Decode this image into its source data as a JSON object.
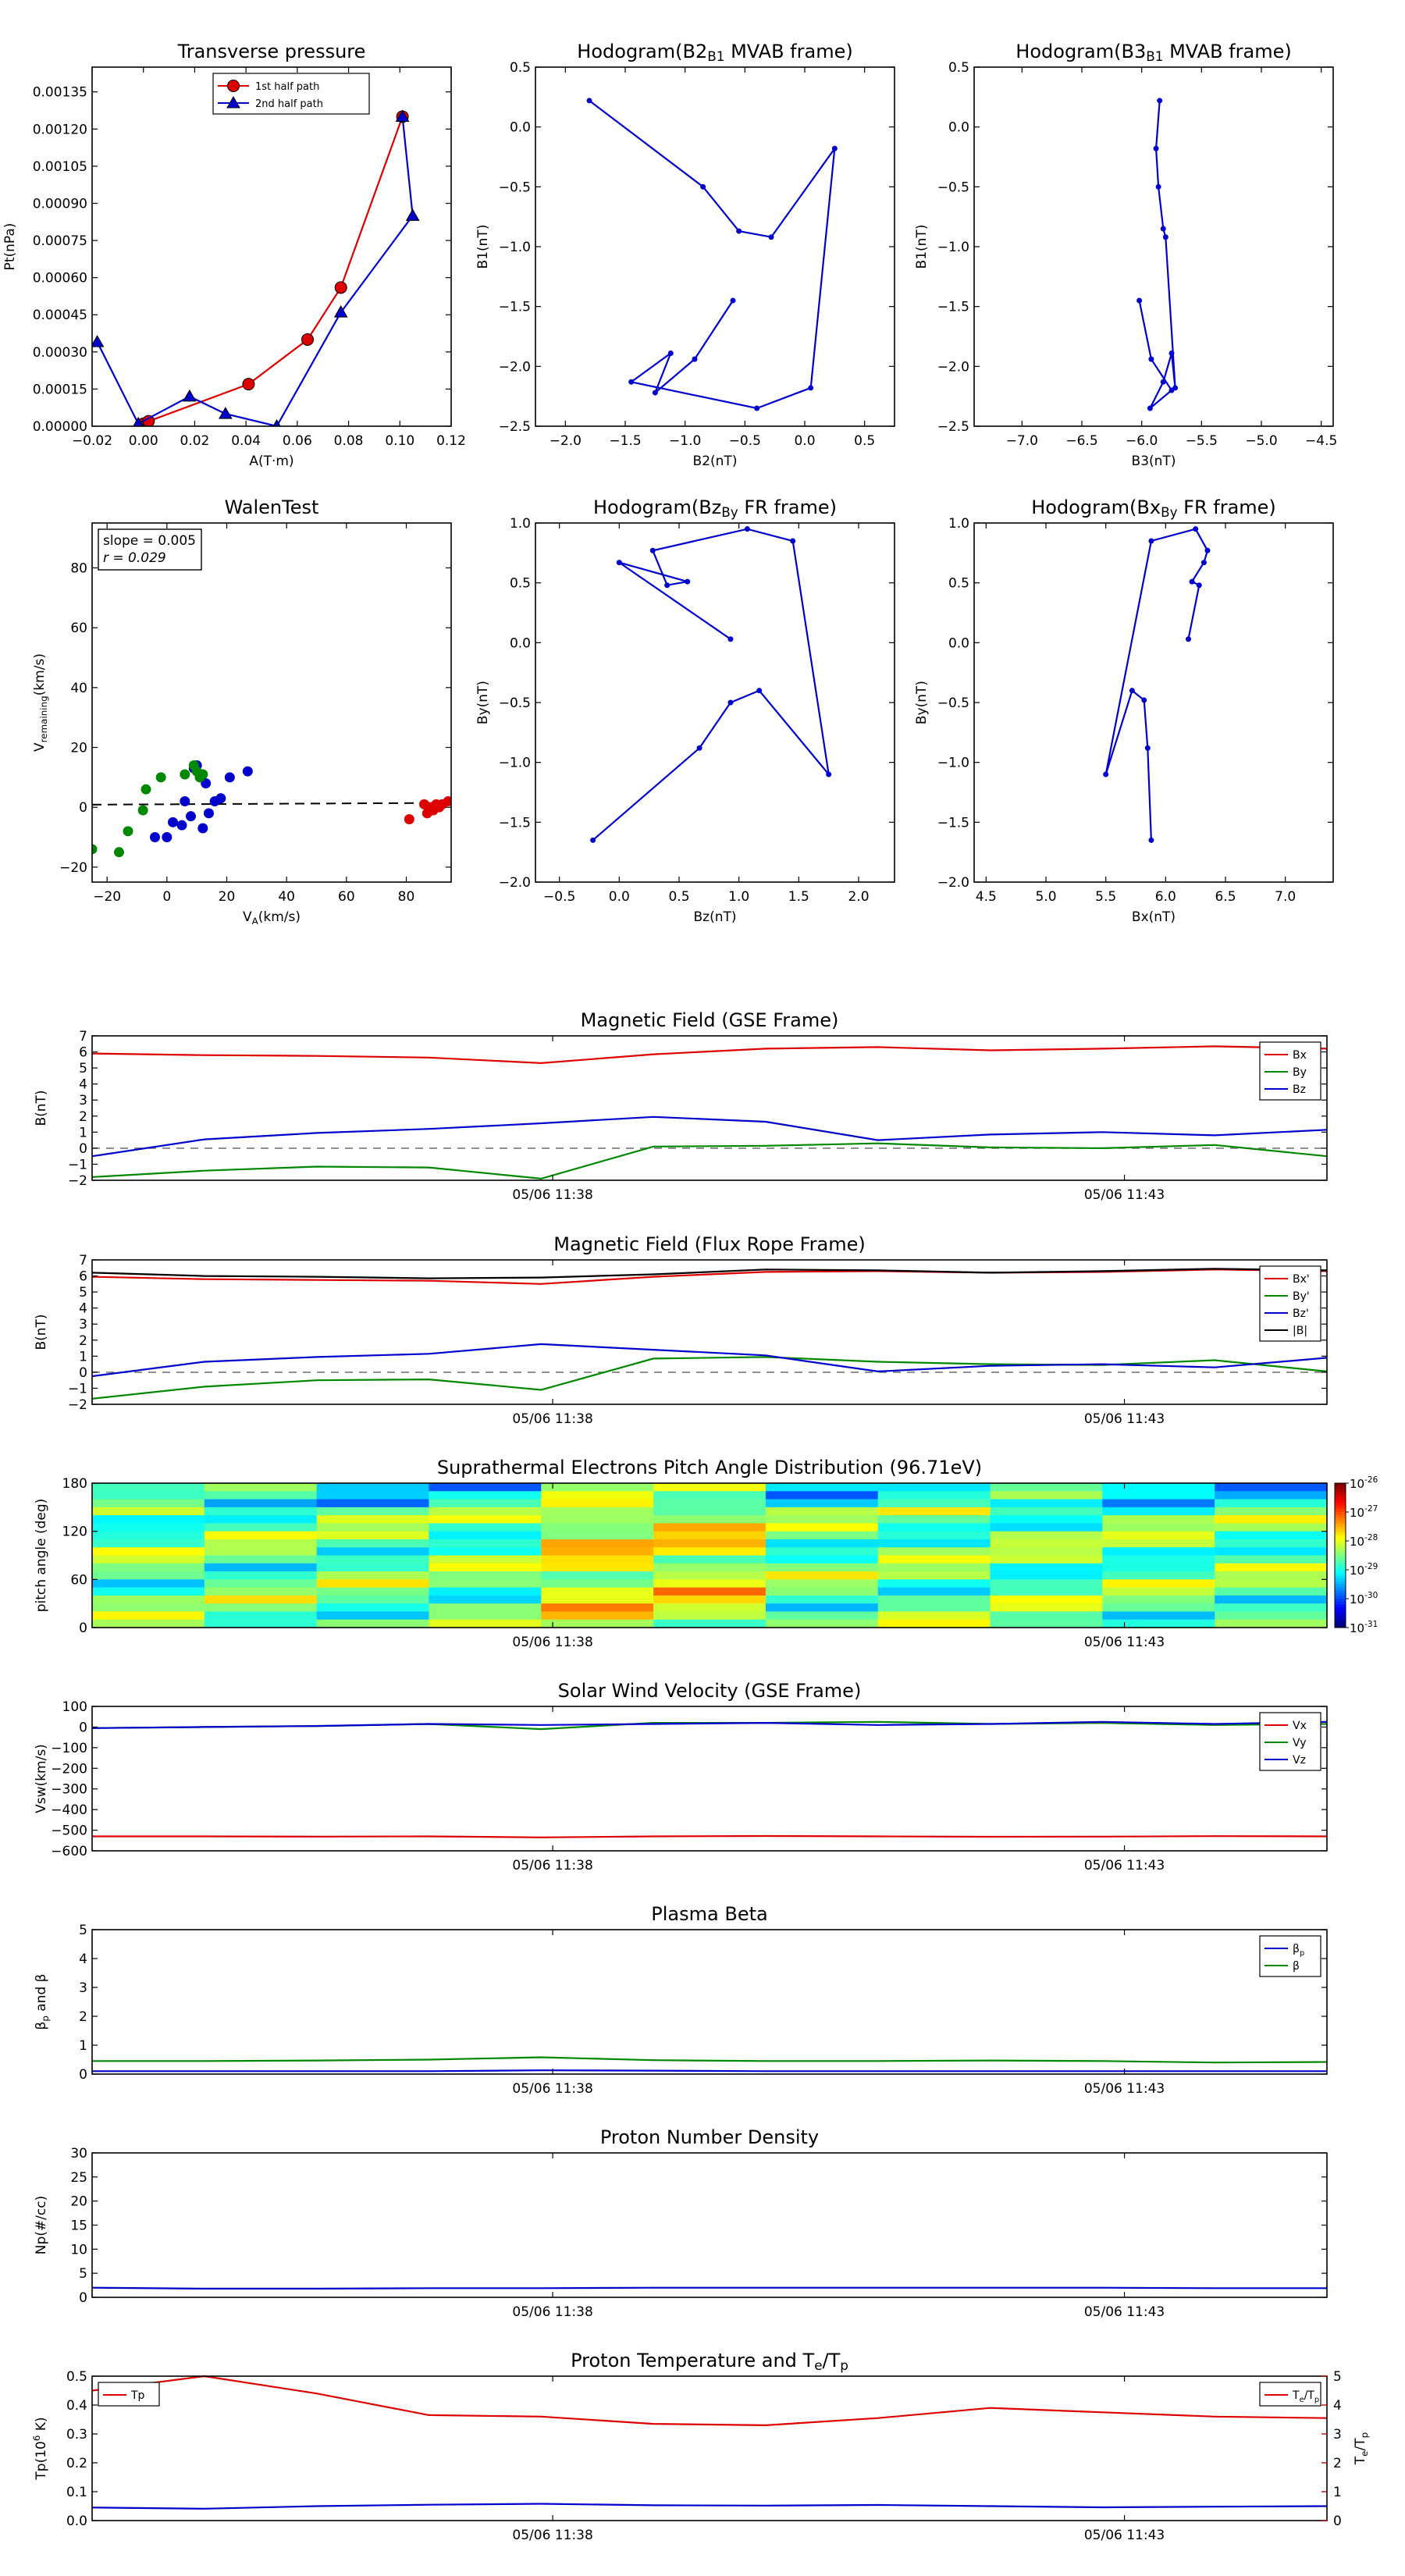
{
  "time_ticks": [
    "05/06 11:38",
    "05/06 11:43"
  ],
  "chart_data": [
    {
      "id": "transverse",
      "type": "line",
      "title": "Transverse pressure",
      "xlabel": "A(T·m)",
      "ylabel": "Pt(nPa)",
      "xlim": [
        -0.02,
        0.12
      ],
      "ylim": [
        0,
        0.00145
      ],
      "xticks": [
        "−0.02",
        "0.00",
        "0.02",
        "0.04",
        "0.06",
        "0.08",
        "0.10",
        "0.12"
      ],
      "xtick_values": [
        -0.02,
        0,
        0.02,
        0.04,
        0.06,
        0.08,
        0.1,
        0.12
      ],
      "yticks": [
        "0.00000",
        "0.00015",
        "0.00030",
        "0.00045",
        "0.00060",
        "0.00075",
        "0.00090",
        "0.00105",
        "0.00120",
        "0.00135"
      ],
      "ytick_values": [
        0,
        0.00015,
        0.0003,
        0.00045,
        0.0006,
        0.00075,
        0.0009,
        0.00105,
        0.0012,
        0.00135
      ],
      "legend_position": "top-center",
      "series": [
        {
          "name": "1st half path",
          "color": "#dd0000",
          "marker": "circle",
          "x": [
            0.0,
            0.002,
            0.041,
            0.064,
            0.077,
            0.101
          ],
          "y": [
            1e-05,
            2e-05,
            0.00017,
            0.00035,
            0.00056,
            0.00125
          ]
        },
        {
          "name": "2nd half path",
          "color": "#0000cc",
          "marker": "triangle",
          "x": [
            0.101,
            0.105,
            0.077,
            0.052,
            0.032,
            0.018,
            -0.002,
            -0.018
          ],
          "y": [
            0.00125,
            0.00085,
            0.00046,
            0.0,
            5e-05,
            0.00012,
            1e-05,
            0.00034
          ]
        }
      ]
    },
    {
      "id": "hodo_b2b1",
      "type": "line",
      "title": "Hodogram(B2_B1 MVAB frame)",
      "xlabel": "B2(nT)",
      "ylabel": "B1(nT)",
      "xlim": [
        -2.25,
        0.75
      ],
      "ylim": [
        -2.5,
        0.5
      ],
      "xticks": [
        "−2.0",
        "−1.5",
        "−1.0",
        "−0.5",
        "0.0",
        "0.5"
      ],
      "xtick_values": [
        -2,
        -1.5,
        -1,
        -0.5,
        0,
        0.5
      ],
      "yticks": [
        "−2.5",
        "−2.0",
        "−1.5",
        "−1.0",
        "−0.5",
        "0.0",
        "0.5"
      ],
      "ytick_values": [
        -2.5,
        -2,
        -1.5,
        -1,
        -0.5,
        0,
        0.5
      ],
      "series": [
        {
          "color": "#0000cc",
          "marker": "dot",
          "x": [
            -1.8,
            -0.85,
            -0.55,
            -0.28,
            0.25,
            0.05,
            -0.4,
            -1.45,
            -1.12,
            -1.25,
            -0.92,
            -0.6
          ],
          "y": [
            0.22,
            -0.5,
            -0.87,
            -0.92,
            -0.18,
            -2.18,
            -2.35,
            -2.13,
            -1.89,
            -2.22,
            -1.94,
            -1.45
          ]
        }
      ]
    },
    {
      "id": "hodo_b3b1",
      "type": "line",
      "title": "Hodogram(B3_B1 MVAB frame)",
      "xlabel": "B3(nT)",
      "ylabel": "B1(nT)",
      "xlim": [
        -7.4,
        -4.4
      ],
      "ylim": [
        -2.5,
        0.5
      ],
      "xticks": [
        "−7.0",
        "−6.5",
        "−6.0",
        "−5.5",
        "−5.0",
        "−4.5"
      ],
      "xtick_values": [
        -7,
        -6.5,
        -6,
        -5.5,
        -5,
        -4.5
      ],
      "yticks": [
        "−2.5",
        "−2.0",
        "−1.5",
        "−1.0",
        "−0.5",
        "0.0",
        "0.5"
      ],
      "ytick_values": [
        -2.5,
        -2,
        -1.5,
        -1,
        -0.5,
        0,
        0.5
      ],
      "series": [
        {
          "color": "#0000cc",
          "marker": "dot",
          "x": [
            -5.85,
            -5.88,
            -5.86,
            -5.82,
            -5.8,
            -5.72,
            -5.75,
            -5.82,
            -5.93,
            -5.75,
            -5.92,
            -6.02
          ],
          "y": [
            0.22,
            -0.18,
            -0.5,
            -0.85,
            -0.92,
            -2.18,
            -1.89,
            -2.13,
            -2.35,
            -2.2,
            -1.94,
            -1.45
          ]
        }
      ]
    },
    {
      "id": "walen",
      "type": "scatter",
      "title": "WalenTest",
      "xlabel": "V_A(km/s)",
      "ylabel": "V_remaining(km/s)",
      "xlim": [
        -25,
        95
      ],
      "ylim": [
        -25,
        95
      ],
      "xticks": [
        "−20",
        "0",
        "20",
        "40",
        "60",
        "80"
      ],
      "xtick_values": [
        -20,
        0,
        20,
        40,
        60,
        80
      ],
      "yticks": [
        "−20",
        "0",
        "20",
        "40",
        "60",
        "80"
      ],
      "ytick_values": [
        -20,
        0,
        20,
        40,
        60,
        80
      ],
      "annotation": [
        "slope = 0.005",
        "r = 0.029"
      ],
      "fit_line": {
        "slope": 0.005,
        "intercept": 1.0
      },
      "series": [
        {
          "color": "#0000cc",
          "x": [
            -4,
            0,
            2,
            5,
            6,
            8,
            9,
            10,
            12,
            13,
            14,
            16,
            18,
            21,
            27
          ],
          "y": [
            -10,
            -10,
            -5,
            -6,
            2,
            -3,
            13,
            14,
            -7,
            8,
            -2,
            2,
            3,
            10,
            12
          ]
        },
        {
          "color": "#008800",
          "x": [
            -25,
            -16,
            -13,
            -8,
            -7,
            -2,
            6,
            9,
            10,
            11,
            12
          ],
          "y": [
            -14,
            -15,
            -8,
            -1,
            6,
            10,
            11,
            14,
            12,
            10,
            11
          ]
        },
        {
          "color": "#dd0000",
          "x": [
            81,
            86,
            87,
            88,
            89,
            90,
            91,
            92,
            94
          ],
          "y": [
            -4,
            1,
            -2,
            0,
            -1,
            1,
            0,
            1,
            2
          ]
        }
      ]
    },
    {
      "id": "hodo_bzby",
      "type": "line",
      "title": "Hodogram(Bz_By FR frame)",
      "xlabel": "Bz(nT)",
      "ylabel": "By(nT)",
      "xlim": [
        -0.7,
        2.3
      ],
      "ylim": [
        -2.0,
        1.0
      ],
      "xticks": [
        "−0.5",
        "0.0",
        "0.5",
        "1.0",
        "1.5",
        "2.0"
      ],
      "xtick_values": [
        -0.5,
        0,
        0.5,
        1,
        1.5,
        2
      ],
      "yticks": [
        "−2.0",
        "−1.5",
        "−1.0",
        "−0.5",
        "0.0",
        "0.5",
        "1.0"
      ],
      "ytick_values": [
        -2,
        -1.5,
        -1,
        -0.5,
        0,
        0.5,
        1
      ],
      "series": [
        {
          "color": "#0000cc",
          "marker": "dot",
          "x": [
            -0.22,
            0.67,
            0.93,
            1.17,
            1.75,
            1.45,
            1.07,
            0.28,
            0.4,
            0.57,
            0.0,
            0.93
          ],
          "y": [
            -1.65,
            -0.88,
            -0.5,
            -0.4,
            -1.1,
            0.85,
            0.95,
            0.77,
            0.48,
            0.51,
            0.67,
            0.03
          ]
        }
      ]
    },
    {
      "id": "hodo_bxby",
      "type": "line",
      "title": "Hodogram(Bx_By FR frame)",
      "xlabel": "Bx(nT)",
      "ylabel": "By(nT)",
      "xlim": [
        4.4,
        7.4
      ],
      "ylim": [
        -2.0,
        1.0
      ],
      "xticks": [
        "4.5",
        "5.0",
        "5.5",
        "6.0",
        "6.5",
        "7.0"
      ],
      "xtick_values": [
        4.5,
        5,
        5.5,
        6,
        6.5,
        7
      ],
      "yticks": [
        "−2.0",
        "−1.5",
        "−1.0",
        "−0.5",
        "0.0",
        "0.5",
        "1.0"
      ],
      "ytick_values": [
        -2,
        -1.5,
        -1,
        -0.5,
        0,
        0.5,
        1
      ],
      "series": [
        {
          "color": "#0000cc",
          "marker": "dot",
          "x": [
            5.88,
            5.85,
            5.82,
            5.72,
            5.5,
            5.88,
            6.25,
            6.35,
            6.32,
            6.22,
            6.28,
            6.19
          ],
          "y": [
            -1.65,
            -0.88,
            -0.48,
            -0.4,
            -1.1,
            0.85,
            0.95,
            0.77,
            0.67,
            0.51,
            0.48,
            0.03
          ]
        }
      ]
    },
    {
      "id": "mag_gse",
      "type": "line",
      "title": "Magnetic Field (GSE Frame)",
      "ylabel": "B(nT)",
      "ylim": [
        -2,
        7
      ],
      "yticks": [
        "−2",
        "−1",
        "0",
        "1",
        "2",
        "3",
        "4",
        "5",
        "6",
        "7"
      ],
      "ytick_values": [
        -2,
        -1,
        0,
        1,
        2,
        3,
        4,
        5,
        6,
        7
      ],
      "zero_line": true,
      "legend_position": "top-right",
      "series": [
        {
          "name": "Bx",
          "color": "#dd0000",
          "values": [
            5.9,
            5.8,
            5.75,
            5.65,
            5.3,
            5.85,
            6.2,
            6.3,
            6.1,
            6.2,
            6.35,
            6.2
          ]
        },
        {
          "name": "By",
          "color": "#008800",
          "values": [
            -1.8,
            -1.4,
            -1.15,
            -1.2,
            -1.9,
            0.1,
            0.15,
            0.3,
            0.05,
            0.0,
            0.2,
            -0.5
          ]
        },
        {
          "name": "Bz",
          "color": "#0000cc",
          "values": [
            -0.5,
            0.55,
            0.95,
            1.2,
            1.55,
            1.95,
            1.65,
            0.5,
            0.85,
            1.0,
            0.8,
            1.15
          ]
        }
      ]
    },
    {
      "id": "mag_fr",
      "type": "line",
      "title": "Magnetic Field (Flux Rope Frame)",
      "ylabel": "B(nT)",
      "ylim": [
        -2,
        7
      ],
      "yticks": [
        "−2",
        "−1",
        "0",
        "1",
        "2",
        "3",
        "4",
        "5",
        "6",
        "7"
      ],
      "ytick_values": [
        -2,
        -1,
        0,
        1,
        2,
        3,
        4,
        5,
        6,
        7
      ],
      "zero_line": true,
      "legend_position": "top-right",
      "series": [
        {
          "name": "Bx'",
          "color": "#dd0000",
          "values": [
            5.95,
            5.8,
            5.75,
            5.7,
            5.5,
            5.95,
            6.25,
            6.3,
            6.2,
            6.25,
            6.4,
            6.3
          ]
        },
        {
          "name": "By'",
          "color": "#008800",
          "values": [
            -1.65,
            -0.9,
            -0.5,
            -0.45,
            -1.1,
            0.85,
            0.95,
            0.65,
            0.5,
            0.45,
            0.75,
            0.05
          ]
        },
        {
          "name": "Bz'",
          "color": "#0000cc",
          "values": [
            -0.25,
            0.65,
            0.95,
            1.15,
            1.75,
            1.4,
            1.05,
            0.05,
            0.4,
            0.5,
            0.3,
            0.9
          ]
        },
        {
          "name": "|B|",
          "color": "#000000",
          "values": [
            6.2,
            6.0,
            5.95,
            5.85,
            5.9,
            6.1,
            6.4,
            6.35,
            6.2,
            6.3,
            6.45,
            6.35
          ]
        }
      ]
    },
    {
      "id": "pad",
      "type": "heatmap",
      "title": "Suprathermal Electrons Pitch Angle Distribution (96.71eV)",
      "ylabel": "pitch angle (deg)",
      "ylim": [
        0,
        180
      ],
      "yticks": [
        "0",
        "60",
        "120",
        "180"
      ],
      "ytick_values": [
        0,
        60,
        120,
        180
      ],
      "colorbar_ticks": [
        "10^-26",
        "10^-27",
        "10^-28",
        "10^-29",
        "10^-30",
        "10^-31"
      ],
      "colormap": "jet"
    },
    {
      "id": "vsw",
      "type": "line",
      "title": "Solar Wind Velocity (GSE Frame)",
      "ylabel": "Vsw(km/s)",
      "ylim": [
        -600,
        100
      ],
      "yticks": [
        "−600",
        "−500",
        "−400",
        "−300",
        "−200",
        "−100",
        "0",
        "100"
      ],
      "ytick_values": [
        -600,
        -500,
        -400,
        -300,
        -200,
        -100,
        0,
        100
      ],
      "legend_position": "top-right",
      "series": [
        {
          "name": "Vx",
          "color": "#dd0000",
          "values": [
            -530,
            -530,
            -531,
            -530,
            -535,
            -530,
            -528,
            -530,
            -532,
            -531,
            -529,
            -530
          ]
        },
        {
          "name": "Vy",
          "color": "#008800",
          "values": [
            -5,
            0,
            5,
            15,
            -10,
            20,
            20,
            25,
            15,
            20,
            10,
            15
          ]
        },
        {
          "name": "Vz",
          "color": "#0000cc",
          "values": [
            -5,
            0,
            5,
            15,
            10,
            15,
            20,
            10,
            15,
            25,
            15,
            25
          ]
        }
      ]
    },
    {
      "id": "beta",
      "type": "line",
      "title": "Plasma Beta",
      "ylabel": "β_p and β",
      "ylim": [
        0,
        5
      ],
      "yticks": [
        "0",
        "1",
        "2",
        "3",
        "4",
        "5"
      ],
      "ytick_values": [
        0,
        1,
        2,
        3,
        4,
        5
      ],
      "legend_position": "top-right",
      "series": [
        {
          "name": "β_p",
          "color": "#0000cc",
          "values": [
            0.1,
            0.1,
            0.1,
            0.1,
            0.13,
            0.12,
            0.1,
            0.1,
            0.1,
            0.1,
            0.1,
            0.1
          ]
        },
        {
          "name": "β",
          "color": "#008800",
          "values": [
            0.45,
            0.45,
            0.47,
            0.5,
            0.58,
            0.48,
            0.45,
            0.45,
            0.47,
            0.45,
            0.4,
            0.42
          ]
        }
      ]
    },
    {
      "id": "np",
      "type": "line",
      "title": "Proton Number Density",
      "ylabel": "Np(#/cc)",
      "ylim": [
        0,
        30
      ],
      "yticks": [
        "0",
        "5",
        "10",
        "15",
        "20",
        "25",
        "30"
      ],
      "ytick_values": [
        0,
        5,
        10,
        15,
        20,
        25,
        30
      ],
      "series": [
        {
          "name": "Np",
          "color": "#0000cc",
          "values": [
            2.0,
            1.8,
            1.8,
            1.9,
            1.9,
            2.0,
            2.0,
            2.0,
            2.0,
            2.0,
            1.9,
            1.9
          ]
        }
      ]
    },
    {
      "id": "tp",
      "type": "line",
      "title": "Proton Temperature and T_e/T_p",
      "ylabel": "Tp(10^6 K)",
      "ylim": [
        0,
        0.5
      ],
      "yticks": [
        "0.0",
        "0.1",
        "0.2",
        "0.3",
        "0.4",
        "0.5"
      ],
      "ytick_values": [
        0,
        0.1,
        0.2,
        0.3,
        0.4,
        0.5
      ],
      "y2label": "T_e/T_p",
      "y2lim": [
        0,
        5
      ],
      "y2ticks": [
        "0",
        "1",
        "2",
        "3",
        "4",
        "5"
      ],
      "y2tick_values": [
        0,
        1,
        2,
        3,
        4,
        5
      ],
      "legend_left": "Tp",
      "legend_right": "T_e/T_p",
      "series": [
        {
          "name": "Tp",
          "color": "#0000cc",
          "axis": "left",
          "values": [
            0.045,
            0.041,
            0.05,
            0.055,
            0.058,
            0.053,
            0.052,
            0.054,
            0.05,
            0.046,
            0.048,
            0.05
          ]
        },
        {
          "name": "T_e/T_p",
          "color": "#dd0000",
          "axis": "right",
          "values": [
            4.5,
            5.0,
            4.4,
            3.65,
            3.6,
            3.35,
            3.3,
            3.55,
            3.9,
            3.75,
            3.6,
            3.55
          ]
        }
      ]
    }
  ]
}
